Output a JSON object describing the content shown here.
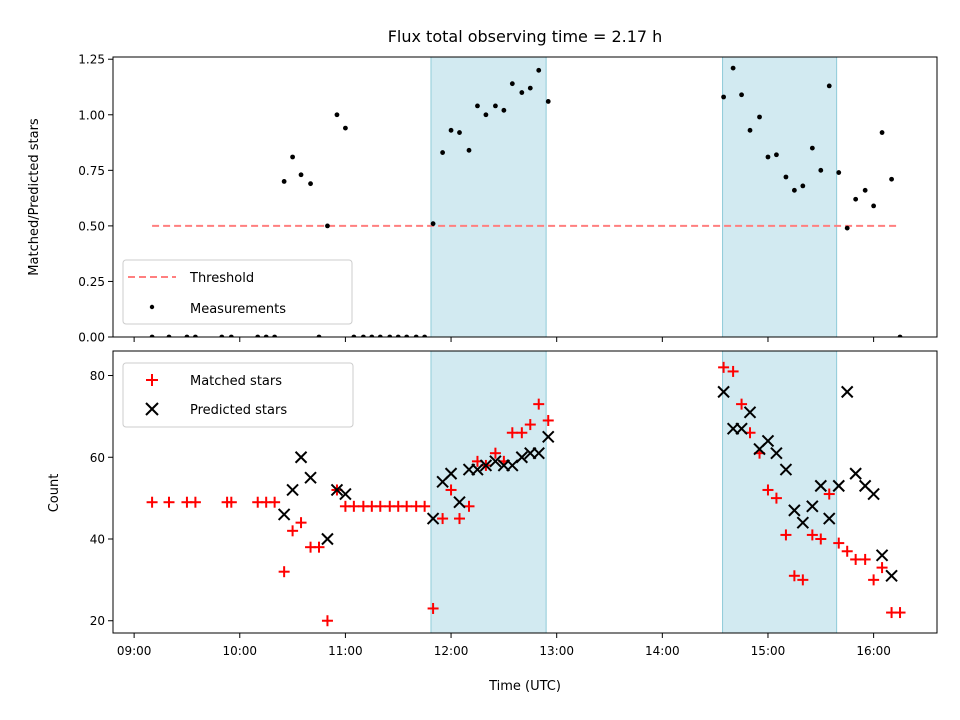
{
  "chart_data": {
    "title": "Flux total observing time = 2.17 h",
    "xlabel": "Time (UTC)",
    "x_unit": "hours UTC",
    "xlim": [
      8.8,
      16.6
    ],
    "xticks": [
      {
        "v": 9,
        "label": "09:00"
      },
      {
        "v": 10,
        "label": "10:00"
      },
      {
        "v": 11,
        "label": "11:00"
      },
      {
        "v": 12,
        "label": "12:00"
      },
      {
        "v": 13,
        "label": "13:00"
      },
      {
        "v": 14,
        "label": "14:00"
      },
      {
        "v": 15,
        "label": "15:00"
      },
      {
        "v": 16,
        "label": "16:00"
      }
    ],
    "shaded_intervals": [
      [
        11.81,
        12.9
      ],
      [
        14.57,
        15.65
      ]
    ],
    "shade_color": "#add8e6",
    "panels": [
      {
        "type": "scatter",
        "ylabel": "Matched/Predicted stars",
        "ylim": [
          0,
          1.26
        ],
        "yticks": [
          {
            "v": 0.0,
            "label": "0.00"
          },
          {
            "v": 0.25,
            "label": "0.25"
          },
          {
            "v": 0.5,
            "label": "0.50"
          },
          {
            "v": 0.75,
            "label": "0.75"
          },
          {
            "v": 1.0,
            "label": "1.00"
          },
          {
            "v": 1.25,
            "label": "1.25"
          }
        ],
        "threshold": {
          "name": "Threshold",
          "y": 0.5,
          "x_range": [
            9.17,
            16.25
          ],
          "color": "#ff7f7f"
        },
        "series": [
          {
            "name": "Measurements",
            "marker": "dot",
            "color": "#000000",
            "points": [
              [
                9.17,
                0
              ],
              [
                9.33,
                0
              ],
              [
                9.5,
                0
              ],
              [
                9.58,
                0
              ],
              [
                9.83,
                0
              ],
              [
                9.92,
                0
              ],
              [
                10.17,
                0
              ],
              [
                10.25,
                0
              ],
              [
                10.33,
                0
              ],
              [
                10.42,
                0.7
              ],
              [
                10.5,
                0.81
              ],
              [
                10.58,
                0.73
              ],
              [
                10.67,
                0.69
              ],
              [
                10.75,
                0
              ],
              [
                10.83,
                0.5
              ],
              [
                10.92,
                1.0
              ],
              [
                11.0,
                0.94
              ],
              [
                11.08,
                0
              ],
              [
                11.17,
                0
              ],
              [
                11.25,
                0
              ],
              [
                11.33,
                0
              ],
              [
                11.42,
                0
              ],
              [
                11.5,
                0
              ],
              [
                11.58,
                0
              ],
              [
                11.67,
                0
              ],
              [
                11.75,
                0
              ],
              [
                11.83,
                0.51
              ],
              [
                11.92,
                0.83
              ],
              [
                12.0,
                0.93
              ],
              [
                12.08,
                0.92
              ],
              [
                12.17,
                0.84
              ],
              [
                12.25,
                1.04
              ],
              [
                12.33,
                1.0
              ],
              [
                12.42,
                1.04
              ],
              [
                12.5,
                1.02
              ],
              [
                12.58,
                1.14
              ],
              [
                12.67,
                1.1
              ],
              [
                12.75,
                1.12
              ],
              [
                12.83,
                1.2
              ],
              [
                12.92,
                1.06
              ],
              [
                14.58,
                1.08
              ],
              [
                14.67,
                1.21
              ],
              [
                14.75,
                1.09
              ],
              [
                14.83,
                0.93
              ],
              [
                14.92,
                0.99
              ],
              [
                15.0,
                0.81
              ],
              [
                15.08,
                0.82
              ],
              [
                15.17,
                0.72
              ],
              [
                15.25,
                0.66
              ],
              [
                15.33,
                0.68
              ],
              [
                15.42,
                0.85
              ],
              [
                15.5,
                0.75
              ],
              [
                15.58,
                1.13
              ],
              [
                15.67,
                0.74
              ],
              [
                15.75,
                0.49
              ],
              [
                15.83,
                0.62
              ],
              [
                15.92,
                0.66
              ],
              [
                16.0,
                0.59
              ],
              [
                16.08,
                0.92
              ],
              [
                16.17,
                0.71
              ],
              [
                16.25,
                0
              ]
            ]
          }
        ],
        "legend": {
          "placement": "lower-left",
          "entries": [
            "Threshold",
            "Measurements"
          ]
        }
      },
      {
        "type": "scatter",
        "ylabel": "Count",
        "ylim": [
          17,
          86
        ],
        "yticks": [
          {
            "v": 20,
            "label": "20"
          },
          {
            "v": 40,
            "label": "40"
          },
          {
            "v": 60,
            "label": "60"
          },
          {
            "v": 80,
            "label": "80"
          }
        ],
        "series": [
          {
            "name": "Matched stars",
            "marker": "plus",
            "color": "#ff0000",
            "points": [
              [
                9.17,
                49
              ],
              [
                9.33,
                49
              ],
              [
                9.5,
                49
              ],
              [
                9.58,
                49
              ],
              [
                9.88,
                49
              ],
              [
                9.92,
                49
              ],
              [
                10.17,
                49
              ],
              [
                10.25,
                49
              ],
              [
                10.33,
                49
              ],
              [
                10.42,
                32
              ],
              [
                10.5,
                42
              ],
              [
                10.58,
                44
              ],
              [
                10.67,
                38
              ],
              [
                10.75,
                38
              ],
              [
                10.83,
                20
              ],
              [
                10.92,
                52
              ],
              [
                11.0,
                48
              ],
              [
                11.08,
                48
              ],
              [
                11.17,
                48
              ],
              [
                11.25,
                48
              ],
              [
                11.33,
                48
              ],
              [
                11.42,
                48
              ],
              [
                11.5,
                48
              ],
              [
                11.58,
                48
              ],
              [
                11.67,
                48
              ],
              [
                11.75,
                48
              ],
              [
                11.83,
                23
              ],
              [
                11.92,
                45
              ],
              [
                12.0,
                52
              ],
              [
                12.08,
                45
              ],
              [
                12.17,
                48
              ],
              [
                12.25,
                59
              ],
              [
                12.33,
                58
              ],
              [
                12.42,
                61
              ],
              [
                12.5,
                59
              ],
              [
                12.58,
                66
              ],
              [
                12.67,
                66
              ],
              [
                12.75,
                68
              ],
              [
                12.83,
                73
              ],
              [
                12.92,
                69
              ],
              [
                14.58,
                82
              ],
              [
                14.67,
                81
              ],
              [
                14.75,
                73
              ],
              [
                14.83,
                66
              ],
              [
                14.92,
                61
              ],
              [
                15.0,
                52
              ],
              [
                15.08,
                50
              ],
              [
                15.17,
                41
              ],
              [
                15.25,
                31
              ],
              [
                15.33,
                30
              ],
              [
                15.42,
                41
              ],
              [
                15.5,
                40
              ],
              [
                15.58,
                51
              ],
              [
                15.67,
                39
              ],
              [
                15.75,
                37
              ],
              [
                15.83,
                35
              ],
              [
                15.92,
                35
              ],
              [
                16.0,
                30
              ],
              [
                16.08,
                33
              ],
              [
                16.17,
                22
              ],
              [
                16.25,
                22
              ]
            ]
          },
          {
            "name": "Predicted stars",
            "marker": "x",
            "color": "#000000",
            "points": [
              [
                10.42,
                46
              ],
              [
                10.5,
                52
              ],
              [
                10.58,
                60
              ],
              [
                10.67,
                55
              ],
              [
                10.83,
                40
              ],
              [
                10.92,
                52
              ],
              [
                11.0,
                51
              ],
              [
                11.83,
                45
              ],
              [
                11.92,
                54
              ],
              [
                12.0,
                56
              ],
              [
                12.08,
                49
              ],
              [
                12.17,
                57
              ],
              [
                12.25,
                57
              ],
              [
                12.33,
                58
              ],
              [
                12.42,
                59
              ],
              [
                12.5,
                58
              ],
              [
                12.58,
                58
              ],
              [
                12.67,
                60
              ],
              [
                12.75,
                61
              ],
              [
                12.83,
                61
              ],
              [
                12.92,
                65
              ],
              [
                14.58,
                76
              ],
              [
                14.67,
                67
              ],
              [
                14.75,
                67
              ],
              [
                14.83,
                71
              ],
              [
                14.92,
                62
              ],
              [
                15.0,
                64
              ],
              [
                15.08,
                61
              ],
              [
                15.17,
                57
              ],
              [
                15.25,
                47
              ],
              [
                15.33,
                44
              ],
              [
                15.42,
                48
              ],
              [
                15.5,
                53
              ],
              [
                15.58,
                45
              ],
              [
                15.67,
                53
              ],
              [
                15.75,
                76
              ],
              [
                15.83,
                56
              ],
              [
                15.92,
                53
              ],
              [
                16.0,
                51
              ],
              [
                16.08,
                36
              ],
              [
                16.17,
                31
              ]
            ]
          }
        ],
        "legend": {
          "placement": "top-left",
          "entries": [
            "Matched stars",
            "Predicted stars"
          ]
        }
      }
    ]
  }
}
